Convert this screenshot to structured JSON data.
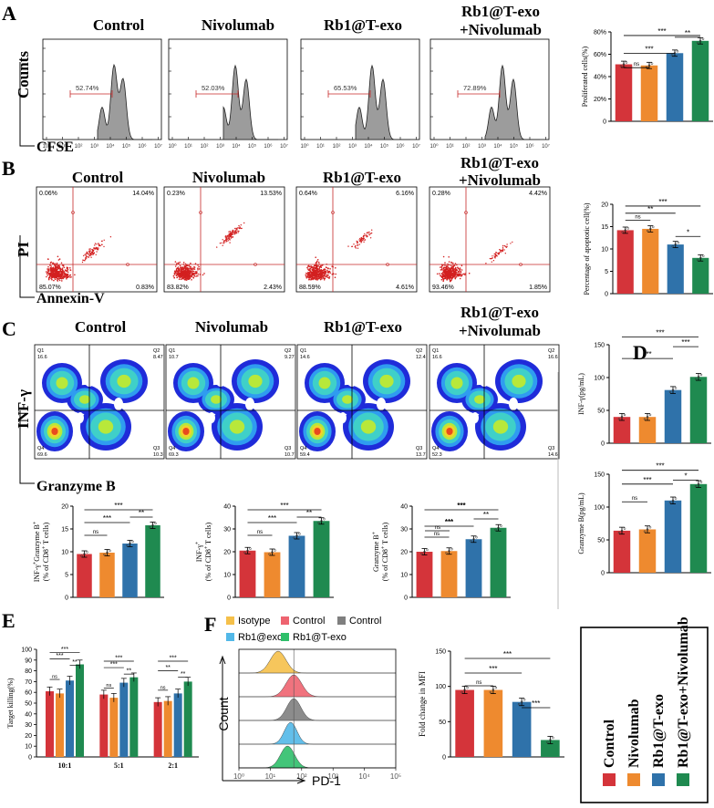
{
  "panel_letters": [
    "A",
    "B",
    "C",
    "D",
    "E",
    "F"
  ],
  "group_titles": [
    "Control",
    "Nivolumab",
    "Rb1@T-exo",
    "Rb1@T-exo +Nivolumab"
  ],
  "group_colors": [
    "#d4343a",
    "#ee8a2f",
    "#2f72aa",
    "#1f8a50"
  ],
  "panelA": {
    "y_axis": "Counts",
    "x_axis": "CFSE",
    "gate_pcts": [
      "52.74%",
      "52.03%",
      "65.53%",
      "72.89%"
    ],
    "chart_data": {
      "type": "bar",
      "categories": [
        "Control",
        "Nivolumab",
        "Rb1@T-exo",
        "Rb1@T-exo+Nivolumab"
      ],
      "values": [
        51,
        50,
        61,
        72
      ],
      "ylabel": "Proliferated cells(%)",
      "ylim": [
        0,
        80
      ],
      "yticks": [
        0,
        20,
        40,
        60,
        80
      ],
      "yticklabels": [
        "0",
        "20%",
        "40%",
        "60%",
        "80%"
      ],
      "sig": [
        "ns",
        "***",
        "***",
        "**"
      ]
    }
  },
  "panelB": {
    "y_axis": "PI",
    "x_axis": "Annexin-V",
    "quadrants": [
      [
        "0.06%",
        "14.04%",
        "85.07%",
        "0.83%"
      ],
      [
        "0.23%",
        "13.53%",
        "83.82%",
        "2.43%"
      ],
      [
        "0.64%",
        "6.16%",
        "88.59%",
        "4.61%"
      ],
      [
        "0.28%",
        "4.42%",
        "93.46%",
        "1.85%"
      ]
    ],
    "chart_data": {
      "type": "bar",
      "categories": [
        "Control",
        "Nivolumab",
        "Rb1@T-exo",
        "Rb1@T-exo+Nivolumab"
      ],
      "values": [
        14.2,
        14.5,
        11.0,
        8.0
      ],
      "ylabel": "Percentage of apoptotic cell(%)",
      "ylim": [
        0,
        20
      ],
      "yticks": [
        0,
        5,
        10,
        15,
        20
      ],
      "sig": [
        "ns",
        "**",
        "***",
        "*"
      ]
    }
  },
  "panelC": {
    "y_axis": "INF-γ",
    "x_axis": "Granzyme B",
    "quadrants": [
      [
        "Q1",
        "16.6",
        "Q2",
        "8.47",
        "Q4",
        "69.6",
        "Q3",
        "10.3"
      ],
      [
        "Q1",
        "10.7",
        "Q2",
        "9.27",
        "Q4",
        "69.3",
        "Q3",
        "10.7"
      ],
      [
        "Q1",
        "14.6",
        "Q2",
        "12.4",
        "Q4",
        "59.4",
        "Q3",
        "13.7"
      ],
      [
        "Q1",
        "16.6",
        "Q2",
        "16.6",
        "Q4",
        "52.3",
        "Q3",
        "14.6"
      ]
    ],
    "charts": [
      {
        "type": "bar",
        "ylabel": "INF-γ+Granzyme B+ (% of CD8+ T cells)",
        "values": [
          9.5,
          9.8,
          11.8,
          15.8
        ],
        "ylim": [
          0,
          20
        ],
        "yticks": [
          0,
          5,
          10,
          15,
          20
        ],
        "sig": [
          "ns",
          "***",
          "***",
          "**"
        ]
      },
      {
        "type": "bar",
        "ylabel": "INF-γ+ (% of CD8+ T cells)",
        "values": [
          20.5,
          19.8,
          27,
          33.5
        ],
        "ylim": [
          0,
          40
        ],
        "yticks": [
          0,
          10,
          20,
          30,
          40
        ],
        "sig": [
          "ns",
          "***",
          "***",
          "**"
        ]
      },
      {
        "type": "bar",
        "ylabel": "Granzyme B+ (% of CD8+ T cells)",
        "values": [
          20,
          20.3,
          25.5,
          30.5
        ],
        "ylim": [
          0,
          40
        ],
        "yticks": [
          0,
          10,
          20,
          30,
          40
        ],
        "sig": [
          "ns",
          "ns",
          "***",
          "***",
          "**"
        ]
      }
    ]
  },
  "panelD": {
    "charts": [
      {
        "type": "bar",
        "ylabel": "INF-γ(pg/mL)",
        "values": [
          40,
          40,
          81,
          101
        ],
        "ylim": [
          0,
          150
        ],
        "yticks": [
          0,
          50,
          100,
          150
        ],
        "sig": [
          "***",
          "***",
          "***"
        ]
      },
      {
        "type": "bar",
        "ylabel": "Granzyme B(pg/mL)",
        "values": [
          64,
          66,
          110,
          135
        ],
        "ylim": [
          0,
          150
        ],
        "yticks": [
          0,
          50,
          100,
          150
        ],
        "sig": [
          "ns",
          "***",
          "*",
          "***"
        ]
      }
    ]
  },
  "panelE": {
    "chart_data": {
      "type": "bar",
      "categories": [
        "10:1",
        "5:1",
        "2:1"
      ],
      "ylabel": "Target killing(%)",
      "ylim": [
        0,
        100
      ],
      "yticks": [
        0,
        10,
        20,
        30,
        40,
        50,
        60,
        70,
        80,
        90,
        100
      ],
      "series": [
        {
          "name": "Control",
          "values": [
            61,
            58,
            51
          ]
        },
        {
          "name": "Nivolumab",
          "values": [
            59,
            55,
            52
          ]
        },
        {
          "name": "Rb1@T-exo",
          "values": [
            71,
            69,
            59
          ]
        },
        {
          "name": "Rb1@T-exo+Nivolumab",
          "values": [
            86,
            74,
            70
          ]
        }
      ],
      "sig": [
        [
          "***",
          "***",
          "**",
          "ns"
        ],
        [
          "***",
          "***",
          "**",
          "ns"
        ],
        [
          "***",
          "**",
          "**",
          "ns"
        ]
      ]
    }
  },
  "panelF": {
    "legend": [
      "Isotype",
      "Control",
      "Control",
      "Rb1@exo",
      "Rb1@T-exo"
    ],
    "legend_colors": [
      "#f5c04a",
      "#ee6470",
      "#7f7f7f",
      "#52b8e8",
      "#2fbf6a"
    ],
    "x_axis": "PD-1",
    "y_axis": "Count",
    "x_ticks": [
      "10⁰",
      "10¹",
      "10²",
      "10³",
      "10⁴",
      "10⁵"
    ],
    "chart_data": {
      "type": "bar",
      "categories": [
        "Control",
        "Nivolumab",
        "Rb1@T-exo",
        "Rb1@T-exo+Nivolumab"
      ],
      "values": [
        95,
        95,
        78,
        24
      ],
      "ylabel": "Fold change in MFI",
      "ylim": [
        0,
        150
      ],
      "yticks": [
        0,
        50,
        100,
        150
      ],
      "sig": [
        "ns",
        "***",
        "***",
        "***"
      ]
    }
  },
  "legend_box": [
    "Control",
    "Nivolumab",
    "Rb1@T-exo",
    "Rb1@T-exo+Nivolumab"
  ]
}
